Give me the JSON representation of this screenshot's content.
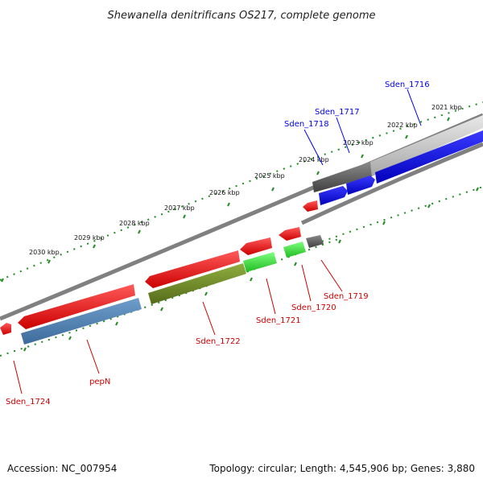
{
  "title": "Shewanella denitrificans OS217, complete genome",
  "footer": {
    "accession": "Accession: NC_007954",
    "summary": "Topology: circular; Length: 4,545,906 bp; Genes: 3,880"
  },
  "colors": {
    "plus_strand": "#0000ee",
    "minus_strand": "#ee0000",
    "cds_plus": "#4a7fb5",
    "cds_olive": "#6b8e23",
    "cds_green": "#33dd33",
    "backbone_light": "#c8c8c8",
    "backbone_dark": "#555555",
    "tick_dot": "#228b22"
  },
  "kbp_ticks": [
    "2021 kbp",
    "2022 kbp",
    "2023 kbp",
    "2024 kbp",
    "2025 kbp",
    "2026 kbp",
    "2027 kbp",
    "2028 kbp",
    "2029 kbp",
    "2030 kbp"
  ],
  "gene_labels_plus": [
    "Sden_1716",
    "Sden_1717",
    "Sden_1718"
  ],
  "gene_labels_minus": [
    "Sden_1719",
    "Sden_1720",
    "Sden_1721",
    "Sden_1722",
    "pepN",
    "Sden_1724"
  ]
}
